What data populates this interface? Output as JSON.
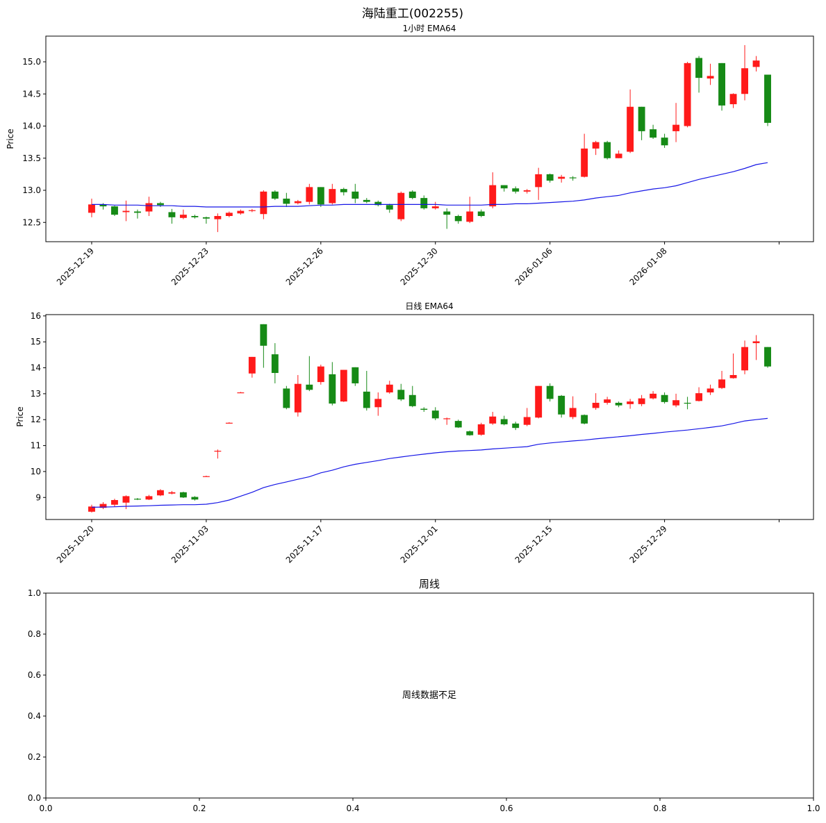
{
  "figure": {
    "suptitle": "海陆重工(002255)",
    "colors": {
      "up": "#ff1a1a",
      "down": "#168a16",
      "ema": "#1515e6",
      "frame": "#000000"
    }
  },
  "chart_data": [
    {
      "type": "candlestick",
      "title": "1小时 EMA64",
      "ylabel": "Price",
      "ylim": [
        12.2,
        15.4
      ],
      "yticks": [
        "12.5",
        "13.0",
        "13.5",
        "14.0",
        "14.5",
        "15.0"
      ],
      "xticks": [
        "2025-12-19",
        "2025-12-23",
        "2025-12-26",
        "2025-12-30",
        "2026-01-06",
        "2026-01-08",
        ""
      ],
      "xtick_index": [
        0,
        10,
        20,
        30,
        40,
        50,
        60
      ],
      "xlim": [
        -4,
        63
      ],
      "series": [
        {
          "kind": "ohlc",
          "values": [
            [
              12.65,
              12.78,
              12.58,
              12.87
            ],
            [
              12.78,
              12.75,
              12.7,
              12.8
            ],
            [
              12.75,
              12.62,
              12.6,
              12.76
            ],
            [
              12.66,
              12.68,
              12.52,
              12.84
            ],
            [
              12.67,
              12.65,
              12.56,
              12.7
            ],
            [
              12.67,
              12.8,
              12.6,
              12.9
            ],
            [
              12.8,
              12.77,
              12.74,
              12.82
            ],
            [
              12.66,
              12.58,
              12.48,
              12.71
            ],
            [
              12.57,
              12.62,
              12.55,
              12.7
            ],
            [
              12.6,
              12.58,
              12.56,
              12.62
            ],
            [
              12.58,
              12.56,
              12.48,
              12.59
            ],
            [
              12.55,
              12.6,
              12.35,
              12.64
            ],
            [
              12.6,
              12.65,
              12.58,
              12.67
            ],
            [
              12.64,
              12.68,
              12.62,
              12.7
            ],
            [
              12.68,
              12.69,
              12.66,
              12.71
            ],
            [
              12.63,
              12.98,
              12.55,
              13.0
            ],
            [
              12.98,
              12.87,
              12.85,
              13.0
            ],
            [
              12.87,
              12.79,
              12.74,
              12.96
            ],
            [
              12.8,
              12.83,
              12.78,
              12.85
            ],
            [
              12.82,
              13.05,
              12.78,
              13.1
            ],
            [
              13.05,
              12.78,
              12.74,
              13.05
            ],
            [
              12.8,
              13.02,
              12.78,
              13.1
            ],
            [
              13.02,
              12.97,
              12.92,
              13.04
            ],
            [
              12.98,
              12.87,
              12.8,
              13.1
            ],
            [
              12.85,
              12.82,
              12.8,
              12.88
            ],
            [
              12.82,
              12.77,
              12.75,
              12.84
            ],
            [
              12.77,
              12.7,
              12.65,
              12.79
            ],
            [
              12.55,
              12.96,
              12.52,
              12.98
            ],
            [
              12.98,
              12.88,
              12.86,
              13.0
            ],
            [
              12.88,
              12.72,
              12.7,
              12.92
            ],
            [
              12.72,
              12.75,
              12.7,
              12.82
            ],
            [
              12.67,
              12.62,
              12.4,
              12.72
            ],
            [
              12.6,
              12.52,
              12.48,
              12.62
            ],
            [
              12.51,
              12.67,
              12.49,
              12.9
            ],
            [
              12.67,
              12.6,
              12.58,
              12.7
            ],
            [
              12.75,
              13.08,
              12.72,
              13.28
            ],
            [
              13.08,
              13.03,
              12.98,
              13.08
            ],
            [
              13.03,
              12.98,
              12.95,
              13.06
            ],
            [
              12.98,
              13.0,
              12.95,
              13.02
            ],
            [
              13.05,
              13.25,
              12.85,
              13.35
            ],
            [
              13.25,
              13.15,
              13.12,
              13.26
            ],
            [
              13.18,
              13.21,
              13.12,
              13.24
            ],
            [
              13.2,
              13.19,
              13.15,
              13.22
            ],
            [
              13.21,
              13.65,
              13.2,
              13.88
            ],
            [
              13.65,
              13.75,
              13.55,
              13.77
            ],
            [
              13.75,
              13.5,
              13.48,
              13.77
            ],
            [
              13.5,
              13.57,
              13.5,
              13.62
            ],
            [
              13.6,
              14.3,
              13.58,
              14.57
            ],
            [
              14.3,
              13.92,
              13.78,
              14.3
            ],
            [
              13.95,
              13.82,
              13.8,
              14.02
            ],
            [
              13.82,
              13.7,
              13.66,
              13.88
            ],
            [
              13.92,
              14.02,
              13.75,
              14.36
            ],
            [
              14.0,
              14.98,
              13.98,
              15.0
            ],
            [
              15.06,
              14.75,
              14.52,
              15.09
            ],
            [
              14.74,
              14.78,
              14.64,
              14.97
            ],
            [
              14.98,
              14.32,
              14.24,
              14.98
            ],
            [
              14.34,
              14.5,
              14.28,
              14.51
            ],
            [
              14.5,
              14.9,
              14.4,
              15.26
            ],
            [
              14.92,
              15.02,
              14.85,
              15.09
            ],
            [
              14.8,
              14.05,
              14.0,
              14.8
            ]
          ]
        },
        {
          "kind": "line",
          "name": "",
          "values": [
            12.78,
            12.78,
            12.77,
            12.77,
            12.77,
            12.76,
            12.76,
            12.76,
            12.75,
            12.75,
            12.74,
            12.74,
            12.74,
            12.74,
            12.74,
            12.74,
            12.75,
            12.75,
            12.75,
            12.76,
            12.77,
            12.77,
            12.78,
            12.78,
            12.78,
            12.78,
            12.78,
            12.78,
            12.78,
            12.78,
            12.78,
            12.77,
            12.77,
            12.77,
            12.77,
            12.78,
            12.78,
            12.79,
            12.79,
            12.8,
            12.81,
            12.82,
            12.83,
            12.85,
            12.88,
            12.9,
            12.92,
            12.96,
            12.99,
            13.02,
            13.04,
            13.07,
            13.12,
            13.17,
            13.21,
            13.25,
            13.29,
            13.34,
            13.4,
            13.43
          ]
        }
      ]
    },
    {
      "type": "candlestick",
      "title": "日线 EMA64",
      "ylabel": "Price",
      "ylim": [
        8.15,
        16.05
      ],
      "yticks": [
        "9",
        "10",
        "11",
        "12",
        "13",
        "14",
        "15",
        "16"
      ],
      "xticks": [
        "2025-10-20",
        "2025-11-03",
        "2025-11-17",
        "2025-12-01",
        "2025-12-15",
        "2025-12-29",
        ""
      ],
      "xtick_index": [
        0,
        10,
        20,
        30,
        40,
        50,
        60
      ],
      "xlim": [
        -4,
        63
      ],
      "series": [
        {
          "kind": "ohlc",
          "values": [
            [
              8.45,
              8.65,
              8.42,
              8.72
            ],
            [
              8.6,
              8.75,
              8.55,
              8.82
            ],
            [
              8.72,
              8.9,
              8.65,
              8.95
            ],
            [
              8.8,
              9.05,
              8.55,
              9.08
            ],
            [
              8.95,
              8.92,
              8.9,
              8.98
            ],
            [
              8.92,
              9.05,
              8.9,
              9.1
            ],
            [
              9.08,
              9.28,
              9.05,
              9.32
            ],
            [
              9.15,
              9.2,
              9.12,
              9.25
            ],
            [
              9.2,
              9.0,
              8.98,
              9.22
            ],
            [
              9.02,
              8.92,
              8.88,
              9.05
            ],
            [
              9.82,
              9.82,
              9.8,
              9.84
            ],
            [
              10.78,
              10.8,
              10.5,
              10.85
            ],
            [
              11.88,
              11.88,
              11.86,
              11.9
            ],
            [
              13.05,
              13.05,
              13.03,
              13.07
            ],
            [
              13.78,
              14.42,
              13.62,
              14.42
            ],
            [
              15.68,
              14.85,
              14.0,
              15.68
            ],
            [
              14.52,
              13.8,
              13.4,
              14.95
            ],
            [
              13.2,
              12.45,
              12.4,
              13.3
            ],
            [
              12.28,
              13.38,
              12.12,
              13.72
            ],
            [
              13.35,
              13.15,
              13.1,
              14.45
            ],
            [
              13.45,
              14.05,
              13.35,
              14.12
            ],
            [
              13.75,
              12.62,
              12.55,
              14.22
            ],
            [
              12.7,
              13.92,
              12.68,
              13.92
            ],
            [
              14.02,
              13.4,
              13.3,
              14.02
            ],
            [
              13.08,
              12.45,
              12.35,
              13.88
            ],
            [
              12.48,
              12.8,
              12.15,
              13.05
            ],
            [
              13.05,
              13.35,
              13.0,
              13.5
            ],
            [
              13.15,
              12.78,
              12.72,
              13.38
            ],
            [
              12.95,
              12.52,
              12.48,
              13.3
            ],
            [
              12.42,
              12.38,
              12.3,
              12.48
            ],
            [
              12.35,
              12.05,
              11.98,
              12.48
            ],
            [
              12.02,
              12.05,
              11.8,
              12.08
            ],
            [
              11.95,
              11.7,
              11.68,
              12.0
            ],
            [
              11.55,
              11.4,
              11.38,
              11.58
            ],
            [
              11.42,
              11.82,
              11.38,
              11.88
            ],
            [
              11.85,
              12.12,
              11.8,
              12.3
            ],
            [
              12.02,
              11.82,
              11.78,
              12.15
            ],
            [
              11.85,
              11.68,
              11.6,
              11.92
            ],
            [
              11.8,
              12.1,
              11.75,
              12.45
            ],
            [
              12.08,
              13.3,
              12.05,
              13.3
            ],
            [
              13.3,
              12.8,
              12.7,
              13.4
            ],
            [
              12.92,
              12.2,
              12.08,
              12.95
            ],
            [
              12.1,
              12.45,
              12.02,
              12.9
            ],
            [
              12.18,
              11.85,
              11.82,
              12.2
            ],
            [
              12.45,
              12.65,
              12.38,
              13.02
            ],
            [
              12.65,
              12.78,
              12.58,
              12.88
            ],
            [
              12.65,
              12.55,
              12.48,
              12.7
            ],
            [
              12.6,
              12.7,
              12.42,
              12.8
            ],
            [
              12.6,
              12.82,
              12.52,
              12.95
            ],
            [
              12.82,
              13.0,
              12.78,
              13.1
            ],
            [
              12.95,
              12.68,
              12.62,
              13.05
            ],
            [
              12.55,
              12.75,
              12.48,
              13.0
            ],
            [
              12.65,
              12.62,
              12.4,
              12.88
            ],
            [
              12.72,
              13.02,
              12.7,
              13.25
            ],
            [
              13.05,
              13.2,
              12.95,
              13.35
            ],
            [
              13.22,
              13.55,
              13.18,
              13.88
            ],
            [
              13.6,
              13.72,
              13.58,
              14.55
            ],
            [
              13.9,
              14.8,
              13.75,
              15.05
            ],
            [
              14.95,
              15.02,
              14.3,
              15.26
            ],
            [
              14.8,
              14.05,
              14.0,
              14.8
            ]
          ]
        },
        {
          "kind": "line",
          "name": "",
          "values": [
            8.62,
            8.63,
            8.64,
            8.66,
            8.67,
            8.68,
            8.7,
            8.71,
            8.72,
            8.72,
            8.74,
            8.8,
            8.9,
            9.05,
            9.2,
            9.38,
            9.5,
            9.6,
            9.7,
            9.8,
            9.95,
            10.05,
            10.18,
            10.28,
            10.35,
            10.42,
            10.5,
            10.56,
            10.62,
            10.67,
            10.72,
            10.76,
            10.79,
            10.81,
            10.83,
            10.87,
            10.9,
            10.93,
            10.96,
            11.05,
            11.1,
            11.14,
            11.18,
            11.21,
            11.26,
            11.3,
            11.34,
            11.38,
            11.43,
            11.47,
            11.52,
            11.56,
            11.6,
            11.65,
            11.7,
            11.76,
            11.85,
            11.95,
            12.0,
            12.05
          ]
        }
      ]
    },
    {
      "type": "empty",
      "title": "周线",
      "message": "周线数据不足",
      "xlim": [
        0,
        1
      ],
      "ylim": [
        0,
        1
      ],
      "xticks": [
        "0.0",
        "0.2",
        "0.4",
        "0.6",
        "0.8",
        "1.0"
      ],
      "yticks": [
        "0.0",
        "0.2",
        "0.4",
        "0.6",
        "0.8",
        "1.0"
      ]
    }
  ]
}
